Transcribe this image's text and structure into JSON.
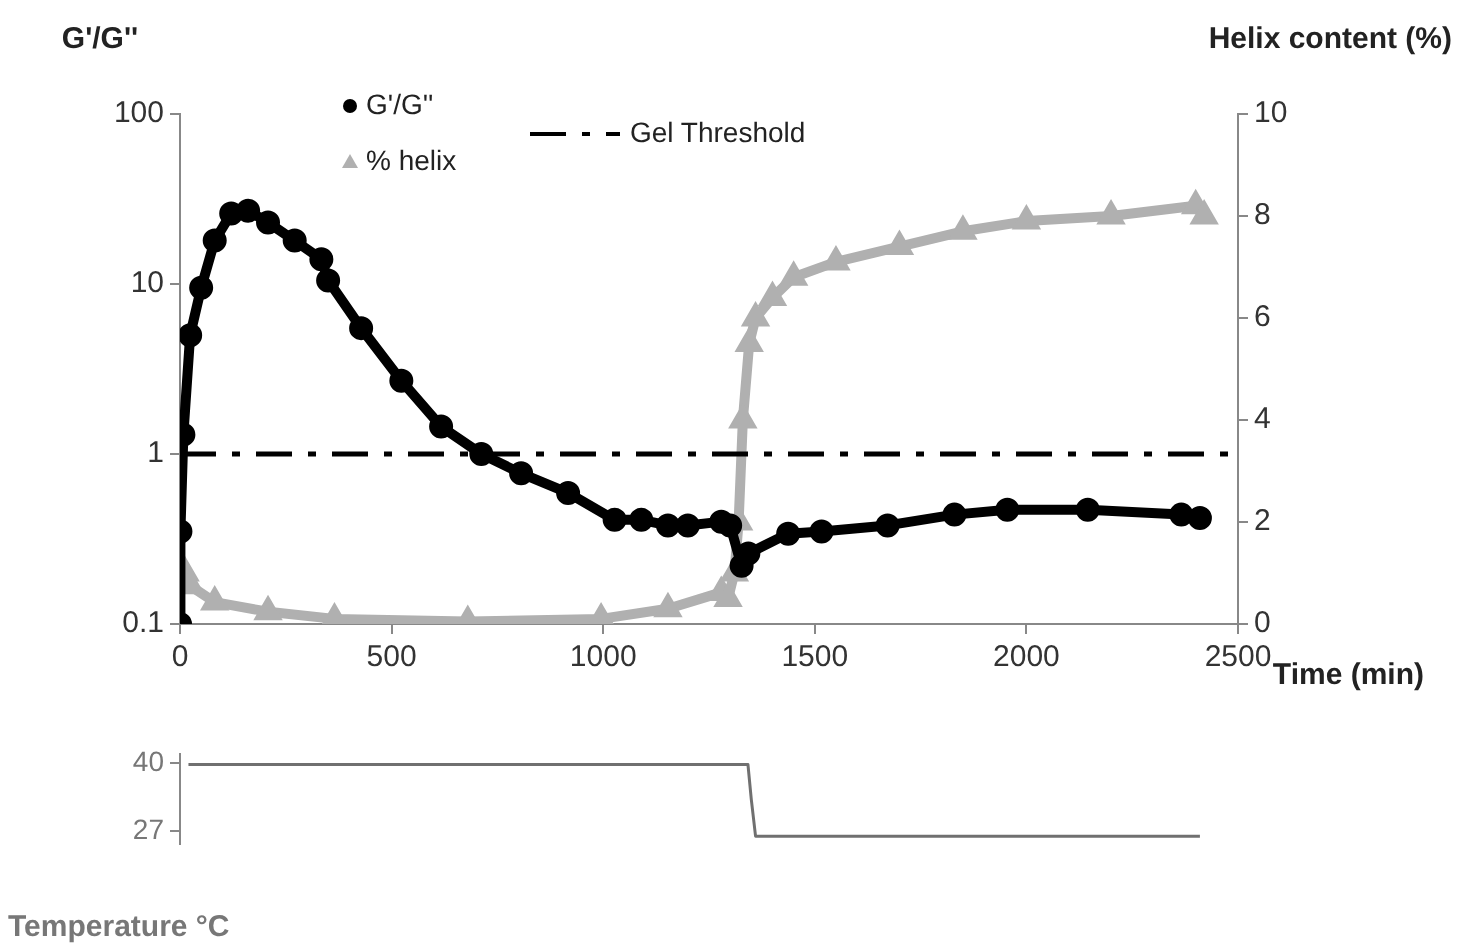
{
  "chart_data": [
    {
      "type": "line",
      "ylabel": "G'/G''",
      "y2label": "Helix content (%)",
      "xlabel": "Time (min)",
      "xlim": [
        0,
        2500
      ],
      "xticks": [
        0,
        500,
        1000,
        1500,
        2000,
        2500
      ],
      "ylim": [
        0.1,
        100
      ],
      "yticks": [
        0.1,
        1,
        10,
        100
      ],
      "log": "y",
      "y2lim": [
        0,
        10
      ],
      "y2ticks": [
        0,
        2,
        4,
        6,
        8,
        10
      ],
      "grid": false,
      "legend": "top left",
      "ref_lines": [
        {
          "axis": "y",
          "value": 1,
          "label": "Gel Threshold",
          "color": "#000000",
          "line_style": "dashdot"
        }
      ],
      "series": [
        {
          "name": "G'/G''",
          "color": "#000000",
          "marker": "circle",
          "x": [
            0,
            1,
            8,
            24,
            50,
            82,
            121,
            161,
            208,
            271,
            334,
            350,
            428,
            523,
            617,
            712,
            806,
            917,
            1027,
            1090,
            1153,
            1200,
            1279,
            1300,
            1327,
            1343,
            1437,
            1516,
            1672,
            1830,
            1955,
            2145,
            2366,
            2410
          ],
          "values": [
            0.1,
            0.35,
            1.3,
            5,
            9.5,
            18,
            26,
            27,
            23,
            18,
            14,
            10.5,
            5.5,
            2.7,
            1.45,
            1.0,
            0.77,
            0.59,
            0.41,
            0.41,
            0.38,
            0.38,
            0.4,
            0.38,
            0.22,
            0.26,
            0.34,
            0.35,
            0.38,
            0.44,
            0.47,
            0.47,
            0.44,
            0.42
          ]
        },
        {
          "name": "% helix",
          "color": "#b0b0b0",
          "marker": "triangle",
          "axis": "y2",
          "x": [
            12,
            24,
            82,
            208,
            365,
            680,
            995,
            1153,
            1279,
            1295,
            1310,
            1320,
            1330,
            1345,
            1360,
            1400,
            1450,
            1550,
            1700,
            1850,
            2000,
            2200,
            2400,
            2420
          ],
          "values": [
            1.0,
            0.75,
            0.43,
            0.24,
            0.1,
            0.05,
            0.1,
            0.3,
            0.62,
            0.5,
            1.0,
            2.0,
            4.0,
            5.5,
            6.0,
            6.4,
            6.8,
            7.1,
            7.4,
            7.7,
            7.9,
            8.0,
            8.2,
            8.0
          ]
        }
      ]
    },
    {
      "type": "line",
      "ylabel": "Temperature °C",
      "xlim": [
        0,
        2500
      ],
      "ylim": [
        24.5,
        41.7
      ],
      "yticks": [
        27,
        40
      ],
      "tick_labels": "y",
      "grid": false,
      "series": [
        {
          "color": "#707070",
          "marker": "none",
          "x": [
            20,
            1342,
            1350,
            1360,
            2410
          ],
          "values": [
            39.7,
            39.7,
            33,
            26,
            26
          ]
        }
      ]
    }
  ]
}
